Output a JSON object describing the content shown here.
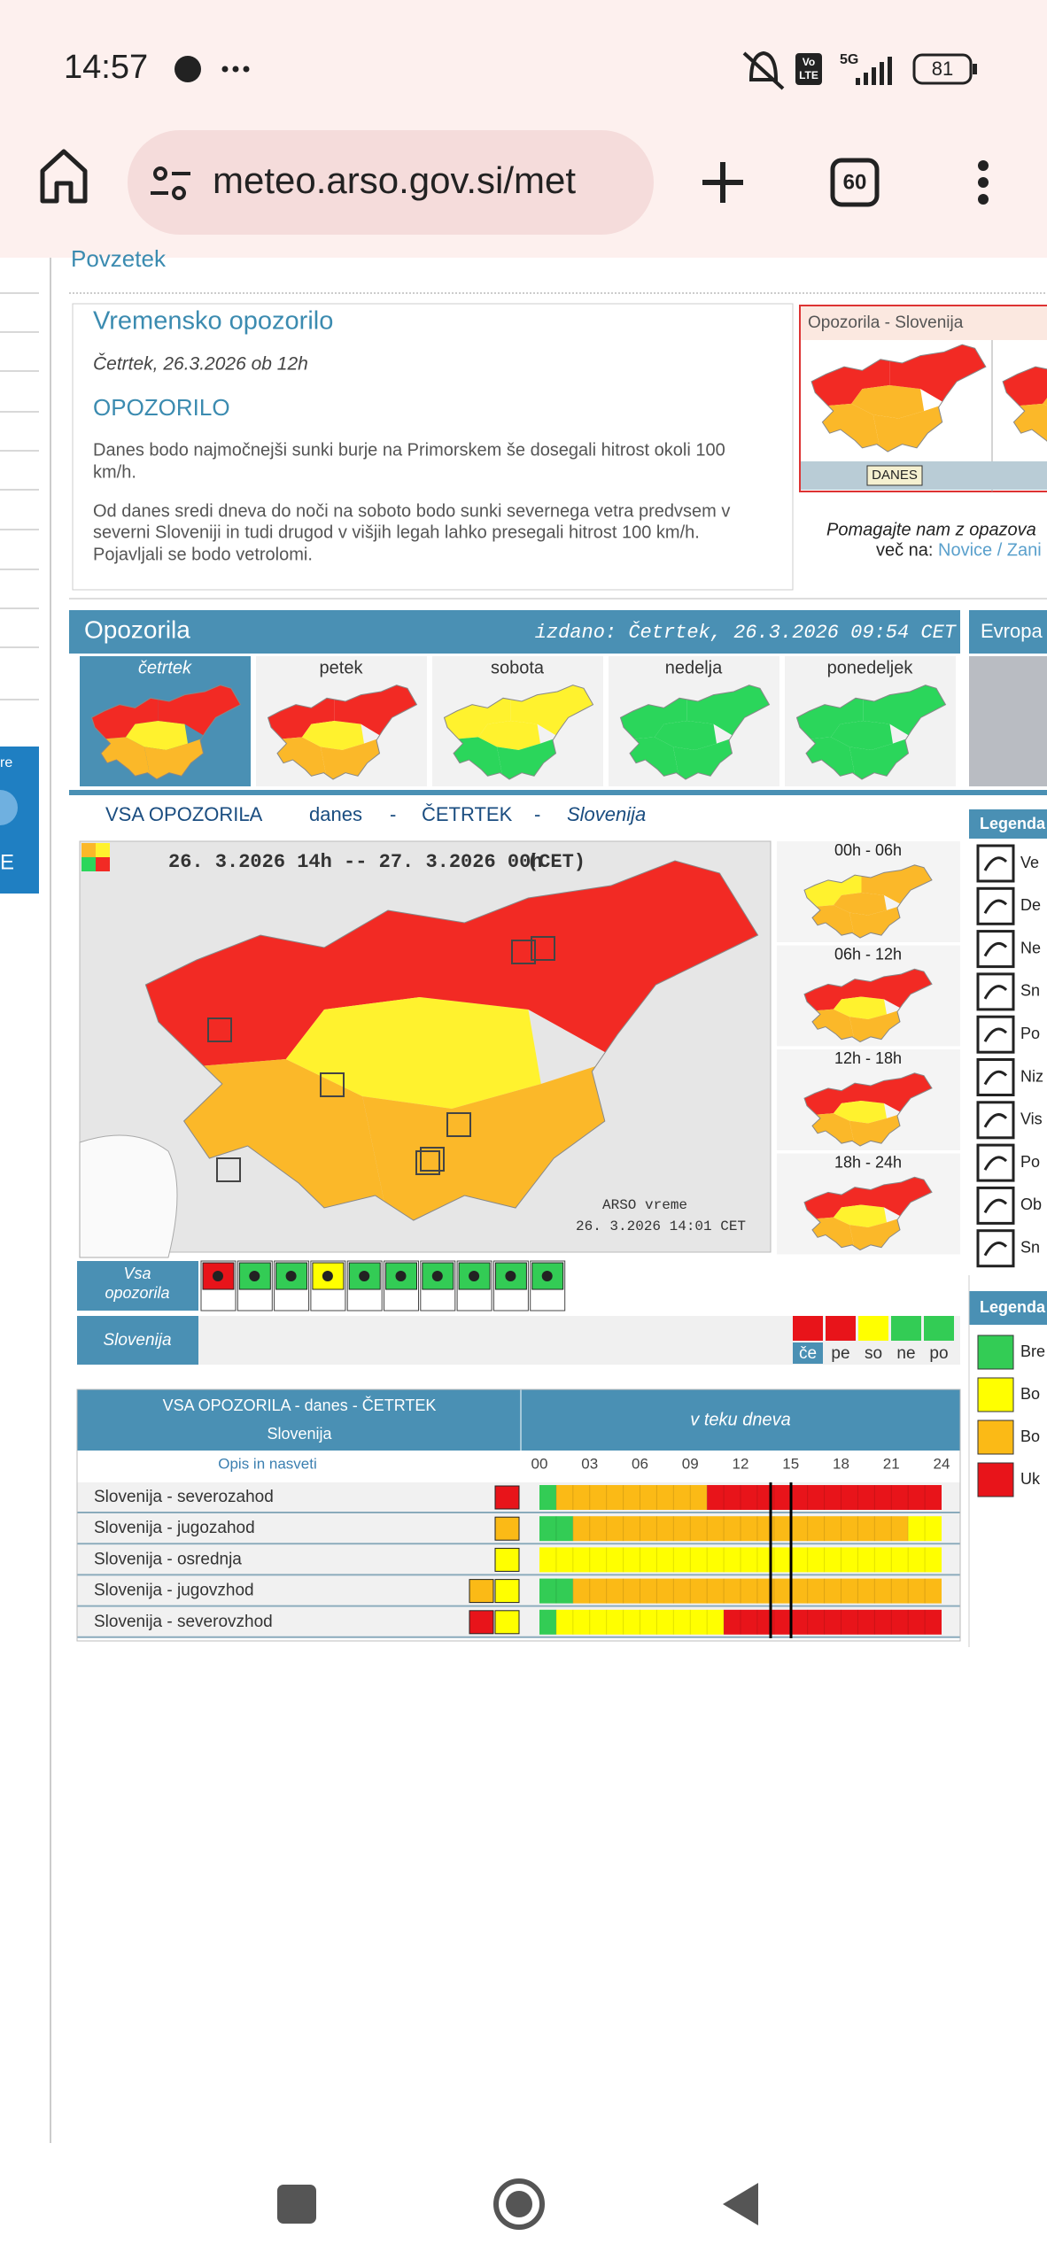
{
  "status_bar": {
    "time": "14:57",
    "volte": [
      "Vo",
      "LTE"
    ],
    "network": "5G",
    "battery": "81"
  },
  "browser": {
    "url": "meteo.arso.gov.si/met",
    "tab_count": "60"
  },
  "sidebar": {
    "fragments": [
      "re",
      "E"
    ]
  },
  "page": {
    "section_heading": "Povzetek",
    "warning": {
      "title": "Vremensko opozorilo",
      "date": "Četrtek, 26.3.2026 ob 12h",
      "heading": "OPOZORILO",
      "paragraphs": [
        [
          "Danes bodo najmočnejši sunki burje na Primorskem še dosegali hitrost okoli 100",
          "km/h."
        ],
        [
          "Od danes sredi dneva do noči na soboto bodo sunki severnega vetra predvsem v",
          "severni Sloveniji in tudi drugod v višjih legah lahko presegali hitrost 100 km/h.",
          "Pojavljali se bodo vetrolomi."
        ]
      ]
    },
    "side_panel": {
      "title": "Opozorila - Slovenija",
      "button": "DANES",
      "help": "Pomagajte nam z opazova",
      "more_prefix": "več na:",
      "more_link": "Novice / Zani",
      "colors": [
        "#f22a24",
        "#fbb829",
        "#fbb829",
        "#fbb829",
        "#f22a24"
      ]
    },
    "warnings_bar": {
      "title": "Opozorila",
      "issued": "izdano: Četrtek, 26.3.2026 09:54 CET",
      "europe": "Evropa"
    },
    "days": [
      {
        "label": "četrtek",
        "colors": [
          "#f22a24",
          "#fbb829",
          "#fff22e",
          "#fbb829",
          "#f22a24"
        ]
      },
      {
        "label": "petek",
        "colors": [
          "#f22a24",
          "#fbb829",
          "#fff22e",
          "#fbb829",
          "#f22a24"
        ]
      },
      {
        "label": "sobota",
        "colors": [
          "#fff22e",
          "#2bd65b",
          "#fff22e",
          "#2bd65b",
          "#fff22e"
        ]
      },
      {
        "label": "nedelja",
        "colors": [
          "#2bd65b",
          "#2bd65b",
          "#2bd65b",
          "#2bd65b",
          "#2bd65b"
        ]
      },
      {
        "label": "ponedeljek",
        "colors": [
          "#2bd65b",
          "#2bd65b",
          "#2bd65b",
          "#2bd65b",
          "#2bd65b"
        ]
      }
    ],
    "all_warnings": {
      "heading": [
        "VSA OPOZORILA",
        "-",
        "danes",
        "-",
        "ČETRTEK",
        "-",
        "Slovenija"
      ],
      "map_period": "26. 3.2026 14h -- 27. 3.2026 00h",
      "map_tz": "(CET)",
      "map_source": "ARSO vreme",
      "map_time": "26. 3.2026 14:01 CET",
      "colors": [
        "#f22a24",
        "#fbb829",
        "#fff22e",
        "#fbb829",
        "#f22a24"
      ]
    },
    "periods": [
      {
        "label": "00h - 06h",
        "colors": [
          "#fff22e",
          "#fbb829",
          "#fbb829",
          "#fbb829",
          "#fbb829"
        ]
      },
      {
        "label": "06h - 12h",
        "colors": [
          "#f22a24",
          "#fbb829",
          "#fff22e",
          "#fbb829",
          "#f22a24"
        ]
      },
      {
        "label": "12h - 18h",
        "colors": [
          "#f22a24",
          "#fbb829",
          "#fff22e",
          "#fbb829",
          "#f22a24"
        ]
      },
      {
        "label": "18h - 24h",
        "colors": [
          "#f22a24",
          "#fbb829",
          "#fff22e",
          "#fbb829",
          "#f22a24"
        ]
      }
    ],
    "summary": {
      "all_label": [
        "Vsa",
        "opozorila"
      ],
      "icon_colors": [
        "#e8141a",
        "#33cc55",
        "#33cc55",
        "#ffff00",
        "#33cc55",
        "#33cc55",
        "#33cc55",
        "#33cc55",
        "#33cc55",
        "#33cc55"
      ],
      "region": "Slovenija",
      "days": [
        {
          "label": "če",
          "color": "#e8141a"
        },
        {
          "label": "pe",
          "color": "#e8141a"
        },
        {
          "label": "so",
          "color": "#ffff00"
        },
        {
          "label": "ne",
          "color": "#33cc55"
        },
        {
          "label": "po",
          "color": "#33cc55"
        }
      ]
    },
    "table": {
      "title": "VSA OPOZORILA - danes - ČETRTEK",
      "region": "Slovenija",
      "timeline_title": "v teku dneva",
      "advice": "Opis in nasveti",
      "hours": [
        "00",
        "03",
        "06",
        "09",
        "12",
        "15",
        "18",
        "21",
        "24"
      ],
      "rows": [
        {
          "label": "Slovenija - severozahod",
          "icons": [
            "#e8141a"
          ],
          "segments": [
            {
              "from": 0,
              "to": 1,
              "color": "#33cc55"
            },
            {
              "from": 1,
              "to": 10,
              "color": "#fbba16"
            },
            {
              "from": 10,
              "to": 24,
              "color": "#e8141a"
            }
          ]
        },
        {
          "label": "Slovenija - jugozahod",
          "icons": [
            "#fbba16"
          ],
          "segments": [
            {
              "from": 0,
              "to": 2,
              "color": "#33cc55"
            },
            {
              "from": 2,
              "to": 22,
              "color": "#fbba16"
            },
            {
              "from": 22,
              "to": 24,
              "color": "#ffff00"
            }
          ]
        },
        {
          "label": "Slovenija - osrednja",
          "icons": [
            "#ffff00"
          ],
          "segments": [
            {
              "from": 0,
              "to": 24,
              "color": "#ffff00"
            }
          ]
        },
        {
          "label": "Slovenija - jugovzhod",
          "icons": [
            "#fbba16",
            "#ffff00"
          ],
          "segments": [
            {
              "from": 0,
              "to": 2,
              "color": "#33cc55"
            },
            {
              "from": 2,
              "to": 24,
              "color": "#fbba16"
            }
          ]
        },
        {
          "label": "Slovenija - severovzhod",
          "icons": [
            "#e8141a",
            "#ffff00"
          ],
          "segments": [
            {
              "from": 0,
              "to": 1,
              "color": "#33cc55"
            },
            {
              "from": 1,
              "to": 11,
              "color": "#ffff00"
            },
            {
              "from": 11,
              "to": 24,
              "color": "#e8141a"
            }
          ]
        }
      ]
    },
    "legend": {
      "title": "Legenda",
      "items": [
        "Ve",
        "De",
        "Ne",
        "Sn",
        "Po",
        "Niz",
        "Vis",
        "Po",
        "Ob",
        "Sn"
      ]
    },
    "color_legend": {
      "title": "Legenda",
      "items": [
        {
          "label": "Bre",
          "color": "#33cc55"
        },
        {
          "label": "Bo",
          "color": "#ffff00"
        },
        {
          "label": "Bo",
          "color": "#fbba16"
        },
        {
          "label": "Uk",
          "color": "#e8141a"
        }
      ]
    }
  }
}
